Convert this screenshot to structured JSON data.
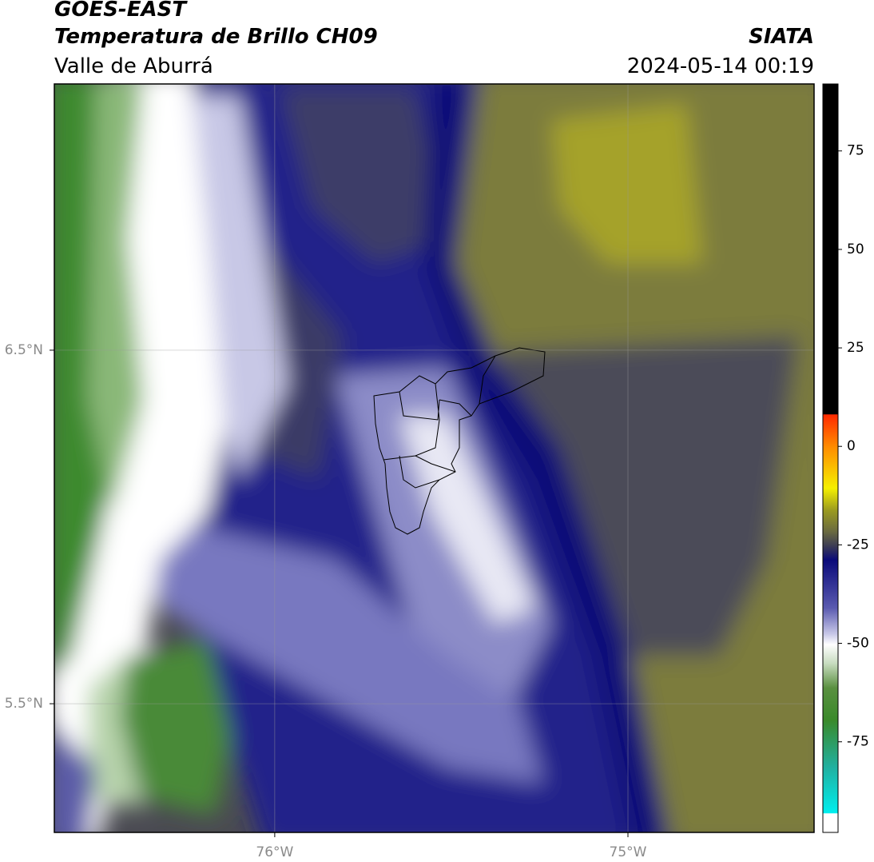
{
  "header": {
    "title": "GOES-EAST",
    "subtitle": "Temperatura de Brillo CH09",
    "region": "Valle de Aburrá",
    "source": "SIATA",
    "datetime": "2024-05-14 00:19"
  },
  "map": {
    "latlim": [
      5.136,
      7.253
    ],
    "lonlim": [
      -76.624,
      -74.473
    ],
    "lat_ticks": [
      {
        "value": 6.5,
        "label": "6.5°N"
      },
      {
        "value": 5.5,
        "label": "5.5°N"
      }
    ],
    "lon_ticks": [
      {
        "value": -76,
        "label": "76°W"
      },
      {
        "value": -75,
        "label": "75°W"
      }
    ],
    "grid": true
  },
  "colorbar": {
    "lim": [
      -98,
      92
    ],
    "ticks": [
      75,
      50,
      25,
      0,
      -25,
      -50,
      -75
    ]
  }
}
